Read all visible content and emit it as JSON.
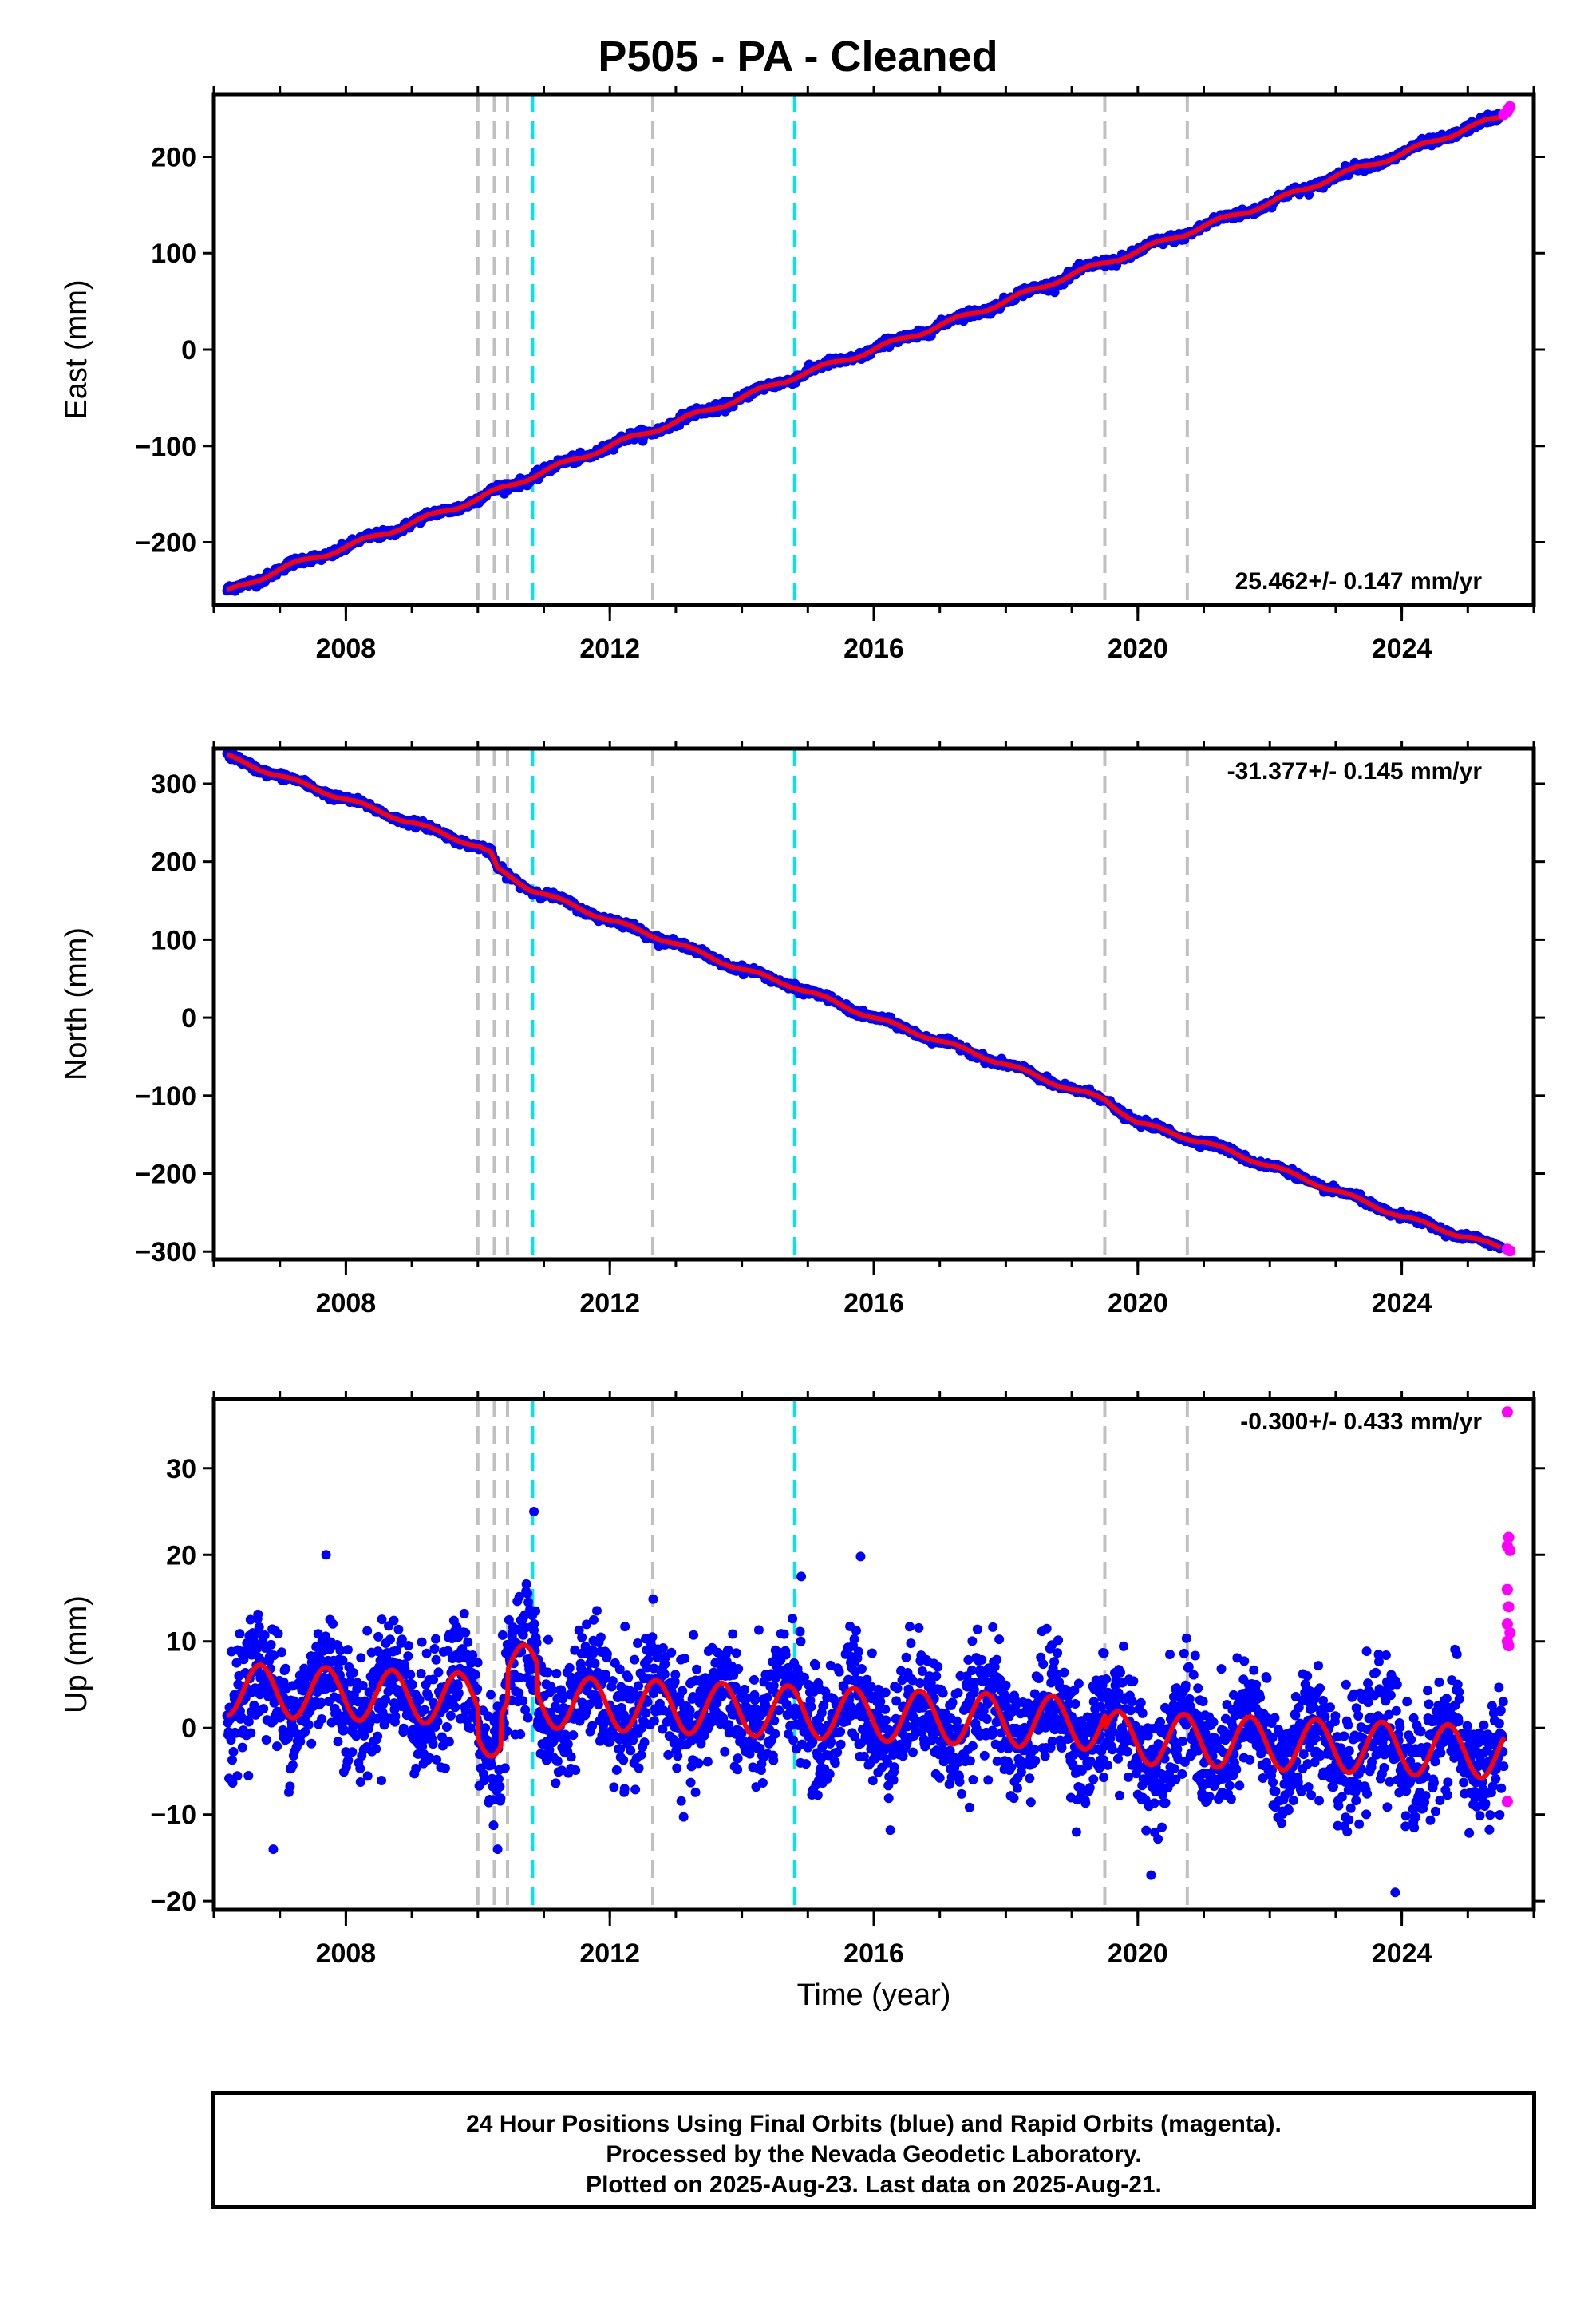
{
  "title": "P505  - PA - Cleaned",
  "x_axis_title": "Time (year)",
  "footer": {
    "line1": "24 Hour Positions Using Final Orbits (blue) and Rapid Orbits (magenta).",
    "line2": "Processed by the Nevada Geodetic Laboratory.",
    "line3": "Plotted on 2025-Aug-23. Last data on 2025-Aug-21."
  },
  "colors": {
    "final_points": "#0000ff",
    "rapid_points": "#ff00ff",
    "model_line": "#ff0000",
    "equipment_change_line": "#c0c0c0",
    "earthquake_line": "#00e5ee"
  },
  "chart_data": [
    {
      "type": "scatter",
      "name": "east",
      "ylabel": "East (mm)",
      "xlim": [
        2006.0,
        2026.0
      ],
      "ylim": [
        -265,
        265
      ],
      "yticks": [
        -200,
        -100,
        0,
        100,
        200
      ],
      "xticks": [
        2008,
        2012,
        2016,
        2020,
        2024
      ],
      "rate_label": "25.462+/- 0.147 mm/yr",
      "rate_position": "bottom-right",
      "series": [
        {
          "kind": "final",
          "model": {
            "start": [
              2006.2,
              -252
            ],
            "end": [
              2025.5,
              241
            ]
          },
          "x": [
            2006.2,
            2007.0,
            2008.0,
            2009.0,
            2010.0,
            2010.8,
            2012.0,
            2013.0,
            2014.0,
            2014.8,
            2016.0,
            2017.0,
            2018.0,
            2019.0,
            2020.0,
            2021.0,
            2022.0,
            2023.0,
            2024.0,
            2025.0,
            2025.5
          ],
          "y": [
            -252,
            -228,
            -205,
            -180,
            -155,
            -132,
            -100,
            -75,
            -50,
            -28,
            0,
            25,
            50,
            78,
            102,
            128,
            152,
            180,
            203,
            230,
            241
          ]
        },
        {
          "kind": "rapid",
          "x": [
            2025.55,
            2025.6,
            2025.62,
            2025.64
          ],
          "y": [
            244,
            247,
            250,
            252
          ]
        }
      ],
      "vlines": {
        "equipment": [
          2010.0,
          2010.25,
          2010.45,
          2012.65,
          2019.5,
          2020.75
        ],
        "earthquake": [
          2010.83,
          2014.8
        ]
      }
    },
    {
      "type": "scatter",
      "name": "north",
      "ylabel": "North (mm)",
      "xlim": [
        2006.0,
        2026.0
      ],
      "ylim": [
        -310,
        345
      ],
      "yticks": [
        -300,
        -200,
        -100,
        0,
        100,
        200,
        300
      ],
      "xticks": [
        2008,
        2012,
        2016,
        2020,
        2024
      ],
      "rate_label": "-31.377+/- 0.145 mm/yr",
      "rate_position": "top-right",
      "series": [
        {
          "kind": "final",
          "x": [
            2006.2,
            2007.0,
            2008.0,
            2009.0,
            2010.0,
            2010.2,
            2010.3,
            2010.8,
            2012.0,
            2013.0,
            2014.0,
            2014.8,
            2016.0,
            2017.0,
            2018.0,
            2019.0,
            2019.5,
            2020.0,
            2021.0,
            2022.0,
            2023.0,
            2024.0,
            2025.0,
            2025.5
          ],
          "y": [
            335,
            310,
            280,
            250,
            220,
            210,
            190,
            165,
            125,
            95,
            62,
            40,
            0,
            -30,
            -60,
            -92,
            -105,
            -135,
            -160,
            -190,
            -222,
            -255,
            -282,
            -295
          ]
        },
        {
          "kind": "rapid",
          "x": [
            2025.6,
            2025.64
          ],
          "y": [
            -297,
            -299
          ]
        }
      ],
      "vlines": {
        "equipment": [
          2010.0,
          2010.25,
          2010.45,
          2012.65,
          2019.5,
          2020.75
        ],
        "earthquake": [
          2010.83,
          2014.8
        ]
      }
    },
    {
      "type": "scatter",
      "name": "up",
      "ylabel": "Up (mm)",
      "xlim": [
        2006.0,
        2026.0
      ],
      "ylim": [
        -21,
        38
      ],
      "yticks": [
        -20,
        -10,
        0,
        10,
        20,
        30
      ],
      "xticks": [
        2008,
        2012,
        2016,
        2020,
        2024
      ],
      "rate_label": "-0.300+/- 0.433 mm/yr",
      "rate_position": "top-right",
      "series": [
        {
          "kind": "final",
          "scatter_sd": 4.5,
          "model": {
            "annual_amplitude": 3.0,
            "mean": 1.5,
            "trend": -0.3,
            "start": 2006.2,
            "end": 2025.55
          },
          "notable_points": [
            {
              "x": 2007.7,
              "y": 20
            },
            {
              "x": 2010.85,
              "y": 25
            },
            {
              "x": 2015.8,
              "y": 19.8
            },
            {
              "x": 2010.3,
              "y": -14
            },
            {
              "x": 2020.2,
              "y": -17
            },
            {
              "x": 2023.9,
              "y": -19
            },
            {
              "x": 2006.9,
              "y": -14
            },
            {
              "x": 2014.9,
              "y": 17.5
            }
          ]
        },
        {
          "kind": "rapid",
          "x": [
            2025.6,
            2025.62,
            2025.6,
            2025.64,
            2025.6,
            2025.62,
            2025.6,
            2025.64,
            2025.6,
            2025.62,
            2025.6
          ],
          "y": [
            36.5,
            22,
            21,
            20.5,
            16,
            14,
            12,
            11,
            10,
            9.5,
            -8.5
          ]
        }
      ],
      "vlines": {
        "equipment": [
          2010.0,
          2010.25,
          2010.45,
          2012.65,
          2019.5,
          2020.75
        ],
        "earthquake": [
          2010.83,
          2014.8
        ]
      }
    }
  ]
}
